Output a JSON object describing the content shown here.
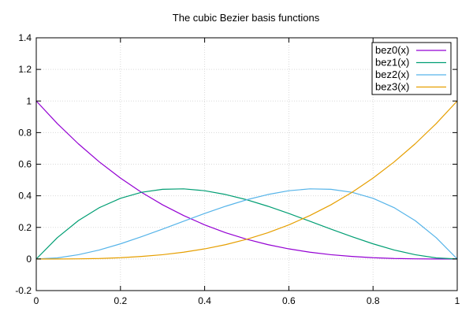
{
  "chart_data": {
    "type": "line",
    "title": "The cubic Bezier basis functions",
    "xlabel": "",
    "ylabel": "",
    "xlim": [
      0,
      1
    ],
    "ylim": [
      -0.2,
      1.4
    ],
    "x_ticks": [
      0,
      0.2,
      0.4,
      0.6,
      0.8,
      1
    ],
    "y_ticks": [
      -0.2,
      0,
      0.2,
      0.4,
      0.6,
      0.8,
      1,
      1.2,
      1.4
    ],
    "x_tick_labels": [
      "0",
      "0.2",
      "0.4",
      "0.6",
      "0.8",
      "1"
    ],
    "y_tick_labels": [
      "-0.2",
      "0",
      "0.2",
      "0.4",
      "0.6",
      "0.8",
      "1",
      "1.2",
      "1.4"
    ],
    "grid": true,
    "legend_position": "top-right",
    "x": [
      0,
      0.05,
      0.1,
      0.15,
      0.2,
      0.25,
      0.3,
      0.35,
      0.4,
      0.45,
      0.5,
      0.55,
      0.6,
      0.65,
      0.7,
      0.75,
      0.8,
      0.85,
      0.9,
      0.95,
      1
    ],
    "series": [
      {
        "name": "bez0(x)",
        "color": "#9400d3",
        "values": [
          1,
          0.857,
          0.729,
          0.614,
          0.512,
          0.422,
          0.343,
          0.275,
          0.216,
          0.166,
          0.125,
          0.091,
          0.064,
          0.043,
          0.027,
          0.016,
          0.008,
          0.003,
          0.001,
          0.0001,
          0
        ]
      },
      {
        "name": "bez1(x)",
        "color": "#009e73",
        "values": [
          0,
          0.135,
          0.243,
          0.325,
          0.384,
          0.422,
          0.441,
          0.444,
          0.432,
          0.408,
          0.375,
          0.334,
          0.288,
          0.239,
          0.189,
          0.141,
          0.096,
          0.057,
          0.027,
          0.007,
          0
        ]
      },
      {
        "name": "bez2(x)",
        "color": "#56b4e9",
        "values": [
          0,
          0.007,
          0.027,
          0.057,
          0.096,
          0.141,
          0.189,
          0.239,
          0.288,
          0.334,
          0.375,
          0.408,
          0.432,
          0.444,
          0.441,
          0.422,
          0.384,
          0.325,
          0.243,
          0.135,
          0
        ]
      },
      {
        "name": "bez3(x)",
        "color": "#e69f00",
        "values": [
          0,
          0.0001,
          0.001,
          0.003,
          0.008,
          0.016,
          0.027,
          0.043,
          0.064,
          0.091,
          0.125,
          0.166,
          0.216,
          0.275,
          0.343,
          0.422,
          0.512,
          0.614,
          0.729,
          0.857,
          1
        ]
      }
    ]
  }
}
